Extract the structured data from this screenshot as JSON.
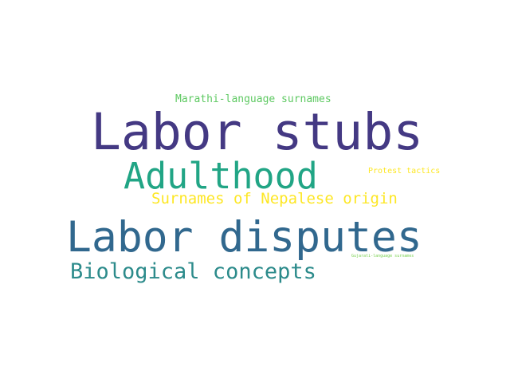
{
  "words": [
    {
      "text": "Marathi-language surnames",
      "color": "#5ec962"
    },
    {
      "text": "Labor stubs",
      "color": "#443983"
    },
    {
      "text": "Adulthood",
      "color": "#21a585"
    },
    {
      "text": "Protest tactics",
      "color": "#fde725"
    },
    {
      "text": "Surnames of Nepalese origin",
      "color": "#fde725"
    },
    {
      "text": "Labor disputes",
      "color": "#31688e"
    },
    {
      "text": "Gujarati-language surnames",
      "color": "#7ad151"
    },
    {
      "text": "Biological concepts",
      "color": "#2c8b8b"
    }
  ]
}
